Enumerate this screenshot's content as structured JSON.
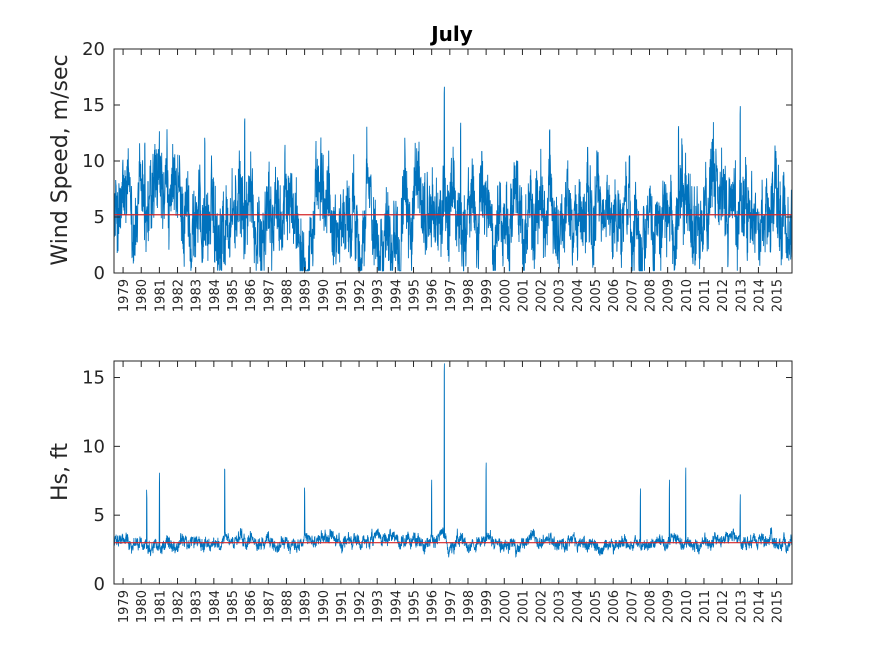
{
  "chart_data": [
    {
      "type": "line",
      "title": "July",
      "ylabel": "Wind Speed, m/sec",
      "xlim": [
        1978.5,
        2015.85
      ],
      "ylim": [
        0,
        20
      ],
      "yticks": [
        "0",
        "5",
        "10",
        "15",
        "20"
      ],
      "xticks": [
        "1979",
        "1980",
        "1981",
        "1982",
        "1983",
        "1984",
        "1985",
        "1986",
        "1987",
        "1988",
        "1989",
        "1990",
        "1991",
        "1992",
        "1993",
        "1994",
        "1995",
        "1996",
        "1997",
        "1998",
        "1999",
        "2000",
        "2001",
        "2002",
        "2003",
        "2004",
        "2005",
        "2006",
        "2007",
        "2008",
        "2009",
        "2010",
        "2011",
        "2012",
        "2013",
        "2014",
        "2015"
      ],
      "series": [
        {
          "mean": 5.2,
          "min": 0.2,
          "max": 16.8,
          "peak_year": 1996,
          "color": "#0072bd",
          "noise_amp": 3.2,
          "spikes": [
            {
              "year": 1980.2,
              "value": 12.0
            },
            {
              "year": 1983.5,
              "value": 12.3
            },
            {
              "year": 1985.7,
              "value": 14.1
            },
            {
              "year": 1996.7,
              "value": 16.8
            },
            {
              "year": 1997.6,
              "value": 13.5
            },
            {
              "year": 2002.5,
              "value": 13.2
            },
            {
              "year": 2013.0,
              "value": 15.0
            },
            {
              "year": 2009.6,
              "value": 13.4
            }
          ]
        },
        {
          "name": "",
          "mean_line": 5.2,
          "color": "#d62728"
        }
      ],
      "grid": false
    },
    {
      "type": "line",
      "title": "",
      "ylabel": "Hs, ft",
      "xlim": [
        1978.5,
        2015.85
      ],
      "ylim": [
        0,
        16.2
      ],
      "yticks": [
        "0",
        "5",
        "10",
        "15"
      ],
      "xticks": [
        "1979",
        "1980",
        "1981",
        "1982",
        "1983",
        "1984",
        "1985",
        "1986",
        "1987",
        "1988",
        "1989",
        "1990",
        "1991",
        "1992",
        "1993",
        "1994",
        "1995",
        "1996",
        "1997",
        "1998",
        "1999",
        "2000",
        "2001",
        "2002",
        "2003",
        "2004",
        "2005",
        "2006",
        "2007",
        "2008",
        "2009",
        "2010",
        "2011",
        "2012",
        "2013",
        "2014",
        "2015"
      ],
      "series": [
        {
          "mean": 3.0,
          "min": 0.6,
          "max": 16.2,
          "peak_year": 1996,
          "color": "#0072bd",
          "noise_amp": 1.2,
          "spikes": [
            {
              "year": 1980.3,
              "value": 7.0
            },
            {
              "year": 1981.0,
              "value": 8.2
            },
            {
              "year": 1984.6,
              "value": 8.8
            },
            {
              "year": 1989.0,
              "value": 7.3
            },
            {
              "year": 1996.0,
              "value": 7.7
            },
            {
              "year": 1996.7,
              "value": 16.2
            },
            {
              "year": 1999.0,
              "value": 9.0
            },
            {
              "year": 2007.5,
              "value": 7.1
            },
            {
              "year": 2009.1,
              "value": 7.7
            },
            {
              "year": 2010.0,
              "value": 8.5
            },
            {
              "year": 2013.0,
              "value": 6.6
            }
          ]
        },
        {
          "name": "",
          "mean_line": 3.0,
          "color": "#d62728"
        }
      ],
      "grid": false
    }
  ]
}
